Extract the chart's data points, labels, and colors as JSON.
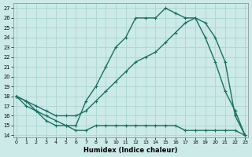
{
  "xlabel": "Humidex (Indice chaleur)",
  "xlim": [
    0,
    23
  ],
  "ylim": [
    14,
    27
  ],
  "xticks": [
    0,
    1,
    2,
    3,
    4,
    5,
    6,
    7,
    8,
    9,
    10,
    11,
    12,
    13,
    14,
    15,
    16,
    17,
    18,
    19,
    20,
    21,
    22,
    23
  ],
  "yticks": [
    14,
    15,
    16,
    17,
    18,
    19,
    20,
    21,
    22,
    23,
    24,
    25,
    26,
    27
  ],
  "bg_color": "#cceae8",
  "line_color": "#1a7060",
  "grid_color": "#b0d8d5",
  "line1_x": [
    0,
    1,
    2,
    3,
    4,
    5,
    6,
    7,
    8,
    9,
    10,
    11,
    12,
    13,
    14,
    15,
    16,
    17,
    18,
    19,
    20,
    21,
    22,
    23
  ],
  "line1_y": [
    18,
    17.5,
    16.5,
    15.5,
    15,
    15,
    14.5,
    14.5,
    15,
    15,
    15,
    15,
    15,
    15,
    15,
    15,
    15,
    14.5,
    14.5,
    14.5,
    14.5,
    14.5,
    14.5,
    14
  ],
  "line2_x": [
    0,
    1,
    2,
    3,
    4,
    5,
    6,
    7,
    8,
    9,
    10,
    11,
    12,
    13,
    14,
    15,
    16,
    17,
    18,
    19,
    20,
    21,
    22,
    23
  ],
  "line2_y": [
    18,
    17,
    16.5,
    16,
    15.5,
    15,
    15,
    17.5,
    19,
    21,
    23,
    24,
    26,
    26,
    26,
    27,
    26.5,
    26,
    26,
    25.5,
    24,
    21.5,
    16,
    14
  ],
  "line3_x": [
    0,
    1,
    2,
    3,
    4,
    5,
    6,
    7,
    8,
    9,
    10,
    11,
    12,
    13,
    14,
    15,
    16,
    17,
    18,
    19,
    20,
    21,
    22,
    23
  ],
  "line3_y": [
    18,
    17.5,
    17,
    16.5,
    16,
    16,
    16,
    16.5,
    17.5,
    18.5,
    19.5,
    20.5,
    21.5,
    22,
    22.5,
    23.5,
    24.5,
    25.5,
    26,
    24,
    21.5,
    18.5,
    16.5,
    14
  ]
}
